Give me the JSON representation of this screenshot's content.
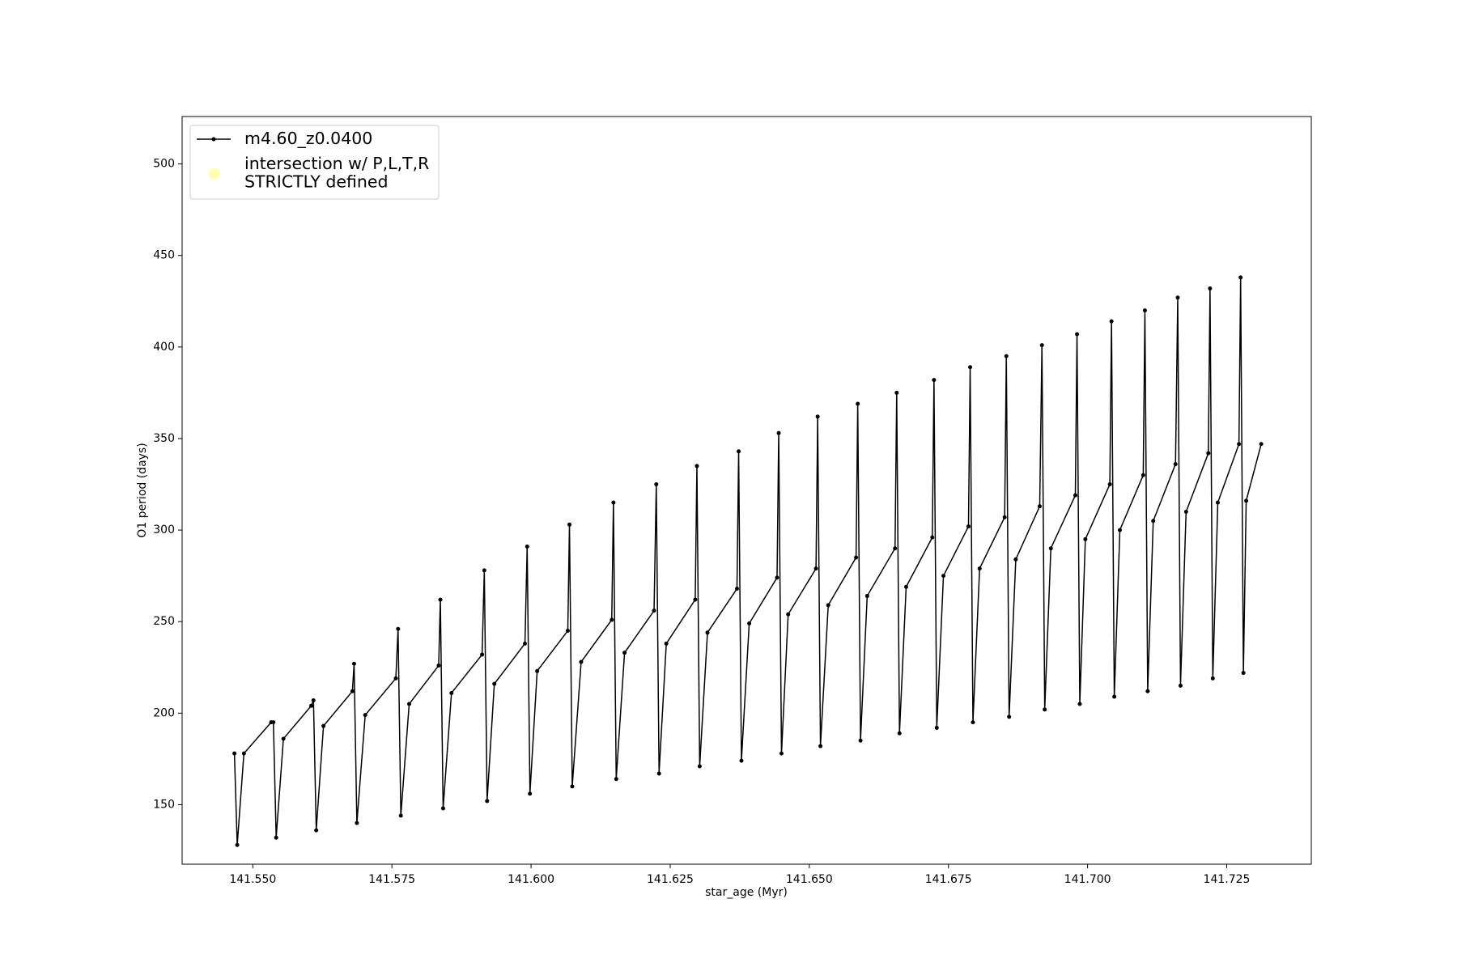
{
  "chart_data": {
    "type": "line",
    "xlabel": "star_age (Myr)",
    "ylabel": "O1 period (days)",
    "xlim": [
      141.5373,
      141.7402
    ],
    "ylim": [
      117.5,
      525.9
    ],
    "xticks": [
      {
        "value": 141.55,
        "label": "141.550"
      },
      {
        "value": 141.575,
        "label": "141.575"
      },
      {
        "value": 141.6,
        "label": "141.600"
      },
      {
        "value": 141.625,
        "label": "141.625"
      },
      {
        "value": 141.65,
        "label": "141.650"
      },
      {
        "value": 141.675,
        "label": "141.675"
      },
      {
        "value": 141.7,
        "label": "141.700"
      },
      {
        "value": 141.725,
        "label": "141.725"
      }
    ],
    "yticks": [
      150,
      200,
      250,
      300,
      350,
      400,
      450,
      500
    ],
    "grid": false,
    "legend": "upper left",
    "series": [
      {
        "name": "m4.60_z0.0400",
        "color": "#000000",
        "marker": "dot",
        "x": [
          141.5467,
          141.5472,
          141.5484,
          141.5533,
          141.5537,
          141.5542,
          141.5555,
          141.5605,
          141.5609,
          141.5614,
          141.5627,
          141.5679,
          141.5682,
          141.5687,
          141.5702,
          141.5757,
          141.5761,
          141.5766,
          141.5781,
          141.5834,
          141.5837,
          141.5842,
          141.5857,
          141.5912,
          141.5916,
          141.5921,
          141.5934,
          141.5989,
          141.5993,
          141.5998,
          141.6011,
          141.6066,
          141.6069,
          141.6074,
          141.609,
          141.6145,
          141.6148,
          141.6153,
          141.6168,
          141.6221,
          141.6225,
          141.623,
          141.6243,
          141.6295,
          141.6298,
          141.6303,
          141.6317,
          141.637,
          141.6373,
          141.6378,
          141.6392,
          141.6442,
          141.6445,
          141.645,
          141.6462,
          141.6512,
          141.6515,
          141.652,
          141.6534,
          141.6584,
          141.6587,
          141.6592,
          141.6604,
          141.6654,
          141.6657,
          141.6662,
          141.6674,
          141.6721,
          141.6724,
          141.6729,
          141.6741,
          141.6786,
          141.6789,
          141.6794,
          141.6806,
          141.6851,
          141.6854,
          141.6859,
          141.6871,
          141.6914,
          141.6918,
          141.6923,
          141.6934,
          141.6978,
          141.6981,
          141.6986,
          141.6996,
          141.704,
          141.7043,
          141.7048,
          141.7058,
          141.71,
          141.7103,
          141.7108,
          141.7118,
          141.7158,
          141.7162,
          141.7167,
          141.7177,
          141.7217,
          141.722,
          141.7225,
          141.7234,
          141.7272,
          141.7275,
          141.728,
          141.7285,
          141.7312
        ],
        "values": [
          178,
          128,
          178,
          195,
          195,
          132,
          186,
          204,
          207,
          136,
          193,
          212,
          227,
          140,
          199,
          219,
          246,
          144,
          205,
          226,
          262,
          148,
          211,
          232,
          278,
          152,
          216,
          238,
          291,
          156,
          223,
          245,
          303,
          160,
          228,
          251,
          315,
          164,
          233,
          256,
          325,
          167,
          238,
          262,
          335,
          171,
          244,
          268,
          343,
          174,
          249,
          274,
          353,
          178,
          254,
          279,
          362,
          182,
          259,
          285,
          369,
          185,
          264,
          290,
          375,
          189,
          269,
          296,
          382,
          192,
          275,
          302,
          389,
          195,
          279,
          307,
          395,
          198,
          284,
          313,
          401,
          202,
          290,
          319,
          407,
          205,
          295,
          325,
          414,
          209,
          300,
          330,
          420,
          212,
          305,
          336,
          427,
          215,
          310,
          342,
          432,
          219,
          315,
          347,
          438,
          222,
          316,
          347
        ]
      },
      {
        "name": "intersection w/ P,L,T,R\nSTRICTLY defined",
        "color": "#ffffb0",
        "marker": "circle",
        "x": [],
        "values": []
      }
    ]
  }
}
